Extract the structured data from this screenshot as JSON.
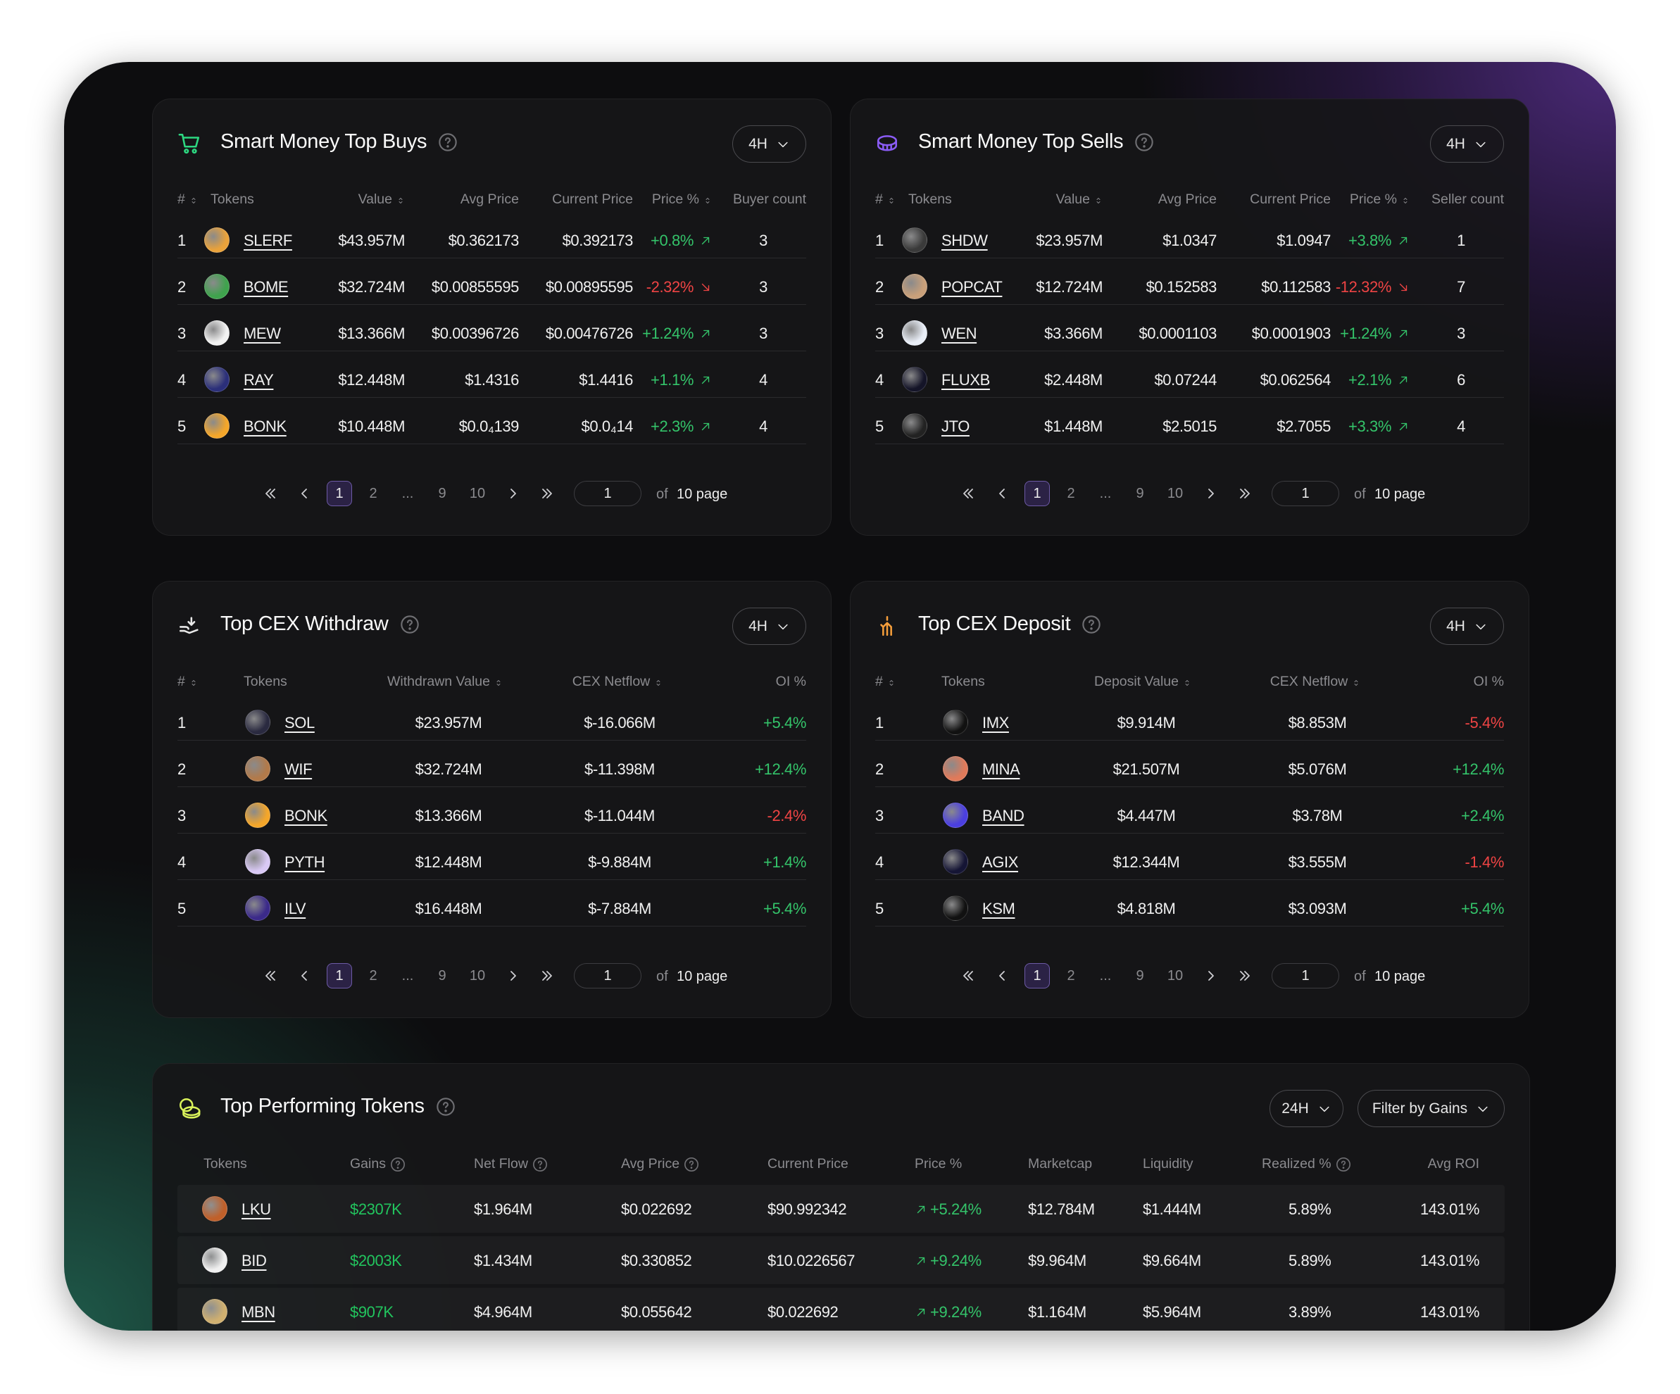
{
  "colors": {
    "accent_green": "#34c46a",
    "accent_red": "#ef4444",
    "accent_purple": "#8b5cf6",
    "page_active": "#2b2245"
  },
  "top_buys": {
    "title": "Smart Money Top Buys",
    "icon": "shopping-cart-icon",
    "timeframe": "4H",
    "headers": {
      "rank": "#",
      "tokens": "Tokens",
      "value": "Value",
      "avg_price": "Avg Price",
      "current_price": "Current Price",
      "price_pct": "Price %",
      "count": "Buyer count"
    },
    "rows": [
      {
        "rank": "1",
        "token": "SLERF",
        "value": "$43.957M",
        "avg_price": "$0.362173",
        "current_price": "$0.392173",
        "price_pct": "+0.8%",
        "trend": "up",
        "count": "3"
      },
      {
        "rank": "2",
        "token": "BOME",
        "value": "$32.724M",
        "avg_price": "$0.00855595",
        "current_price": "$0.00895595",
        "price_pct": "-2.32%",
        "trend": "down",
        "count": "3"
      },
      {
        "rank": "3",
        "token": "MEW",
        "value": "$13.366M",
        "avg_price": "$0.00396726",
        "current_price": "$0.00476726",
        "price_pct": "+1.24%",
        "trend": "up",
        "count": "3"
      },
      {
        "rank": "4",
        "token": "RAY",
        "value": "$12.448M",
        "avg_price": "$1.4316",
        "current_price": "$1.4416",
        "price_pct": "+1.1%",
        "trend": "up",
        "count": "4"
      },
      {
        "rank": "5",
        "token": "BONK",
        "value": "$10.448M",
        "avg_price": "$0.0₄139",
        "current_price": "$0.0₄14",
        "price_pct": "+2.3%",
        "trend": "up",
        "count": "4"
      }
    ],
    "pagination": {
      "pages": [
        "1",
        "2",
        "...",
        "9",
        "10"
      ],
      "current": "1",
      "input": "1",
      "of": "of",
      "total": "10 page"
    }
  },
  "top_sells": {
    "title": "Smart Money Top Sells",
    "icon": "coin-stack-icon",
    "timeframe": "4H",
    "headers": {
      "rank": "#",
      "tokens": "Tokens",
      "value": "Value",
      "avg_price": "Avg Price",
      "current_price": "Current Price",
      "price_pct": "Price %",
      "count": "Seller count"
    },
    "rows": [
      {
        "rank": "1",
        "token": "SHDW",
        "value": "$23.957M",
        "avg_price": "$1.0347",
        "current_price": "$1.0947",
        "price_pct": "+3.8%",
        "trend": "up",
        "count": "1"
      },
      {
        "rank": "2",
        "token": "POPCAT",
        "value": "$12.724M",
        "avg_price": "$0.152583",
        "current_price": "$0.112583",
        "price_pct": "-12.32%",
        "trend": "down",
        "count": "7"
      },
      {
        "rank": "3",
        "token": "WEN",
        "value": "$3.366M",
        "avg_price": "$0.0001103",
        "current_price": "$0.0001903",
        "price_pct": "+1.24%",
        "trend": "up",
        "count": "3"
      },
      {
        "rank": "4",
        "token": "FLUXB",
        "value": "$2.448M",
        "avg_price": "$0.07244",
        "current_price": "$0.062564",
        "price_pct": "+2.1%",
        "trend": "up",
        "count": "6"
      },
      {
        "rank": "5",
        "token": "JTO",
        "value": "$1.448M",
        "avg_price": "$2.5015",
        "current_price": "$2.7055",
        "price_pct": "+3.3%",
        "trend": "up",
        "count": "4"
      }
    ],
    "pagination": {
      "pages": [
        "1",
        "2",
        "...",
        "9",
        "10"
      ],
      "current": "1",
      "input": "1",
      "of": "of",
      "total": "10 page"
    }
  },
  "cex_withdraw": {
    "title": "Top CEX Withdraw",
    "icon": "withdraw-hand-icon",
    "timeframe": "4H",
    "headers": {
      "rank": "#",
      "tokens": "Tokens",
      "value": "Withdrawn Value",
      "netflow": "CEX Netflow",
      "oi": "OI %"
    },
    "rows": [
      {
        "rank": "1",
        "token": "SOL",
        "value": "$23.957M",
        "netflow": "$-16.066M",
        "oi": "+5.4%",
        "trend": "up"
      },
      {
        "rank": "2",
        "token": "WIF",
        "value": "$32.724M",
        "netflow": "$-11.398M",
        "oi": "+12.4%",
        "trend": "up"
      },
      {
        "rank": "3",
        "token": "BONK",
        "value": "$13.366M",
        "netflow": "$-11.044M",
        "oi": "-2.4%",
        "trend": "down"
      },
      {
        "rank": "4",
        "token": "PYTH",
        "value": "$12.448M",
        "netflow": "$-9.884M",
        "oi": "+1.4%",
        "trend": "up"
      },
      {
        "rank": "5",
        "token": "ILV",
        "value": "$16.448M",
        "netflow": "$-7.884M",
        "oi": "+5.4%",
        "trend": "up"
      }
    ],
    "pagination": {
      "pages": [
        "1",
        "2",
        "...",
        "9",
        "10"
      ],
      "current": "1",
      "input": "1",
      "of": "of",
      "total": "10 page"
    }
  },
  "cex_deposit": {
    "title": "Top CEX Deposit",
    "icon": "deposit-hand-icon",
    "timeframe": "4H",
    "headers": {
      "rank": "#",
      "tokens": "Tokens",
      "value": "Deposit Value",
      "netflow": "CEX Netflow",
      "oi": "OI %"
    },
    "rows": [
      {
        "rank": "1",
        "token": "IMX",
        "value": "$9.914M",
        "netflow": "$8.853M",
        "oi": "-5.4%",
        "trend": "down"
      },
      {
        "rank": "2",
        "token": "MINA",
        "value": "$21.507M",
        "netflow": "$5.076M",
        "oi": "+12.4%",
        "trend": "up"
      },
      {
        "rank": "3",
        "token": "BAND",
        "value": "$4.447M",
        "netflow": "$3.78M",
        "oi": "+2.4%",
        "trend": "up"
      },
      {
        "rank": "4",
        "token": "AGIX",
        "value": "$12.344M",
        "netflow": "$3.555M",
        "oi": "-1.4%",
        "trend": "down"
      },
      {
        "rank": "5",
        "token": "KSM",
        "value": "$4.818M",
        "netflow": "$3.093M",
        "oi": "+5.4%",
        "trend": "up"
      }
    ],
    "pagination": {
      "pages": [
        "1",
        "2",
        "...",
        "9",
        "10"
      ],
      "current": "1",
      "input": "1",
      "of": "of",
      "total": "10 page"
    }
  },
  "top_performing": {
    "title": "Top Performing Tokens",
    "icon": "coins-icon",
    "timeframe": "24H",
    "filter": "Filter by Gains",
    "headers": {
      "tokens": "Tokens",
      "gains": "Gains",
      "netflow": "Net Flow",
      "avg_price": "Avg Price",
      "current_price": "Current Price",
      "price_pct": "Price %",
      "marketcap": "Marketcap",
      "liquidity": "Liquidity",
      "realized": "Realized %",
      "avg_roi": "Avg ROI"
    },
    "rows": [
      {
        "token": "LKU",
        "gains": "$2307K",
        "netflow": "$1.964M",
        "avg_price": "$0.022692",
        "current_price": "$90.992342",
        "price_pct": "+5.24%",
        "marketcap": "$12.784M",
        "liquidity": "$1.444M",
        "realized": "5.89%",
        "avg_roi": "143.01%"
      },
      {
        "token": "BID",
        "gains": "$2003K",
        "netflow": "$1.434M",
        "avg_price": "$0.330852",
        "current_price": "$10.0226567",
        "price_pct": "+9.24%",
        "marketcap": "$9.964M",
        "liquidity": "$9.664M",
        "realized": "5.89%",
        "avg_roi": "143.01%"
      },
      {
        "token": "MBN",
        "gains": "$907K",
        "netflow": "$4.964M",
        "avg_price": "$0.055642",
        "current_price": "$0.022692",
        "price_pct": "+9.24%",
        "marketcap": "$1.164M",
        "liquidity": "$5.964M",
        "realized": "3.89%",
        "avg_roi": "143.01%"
      }
    ]
  }
}
